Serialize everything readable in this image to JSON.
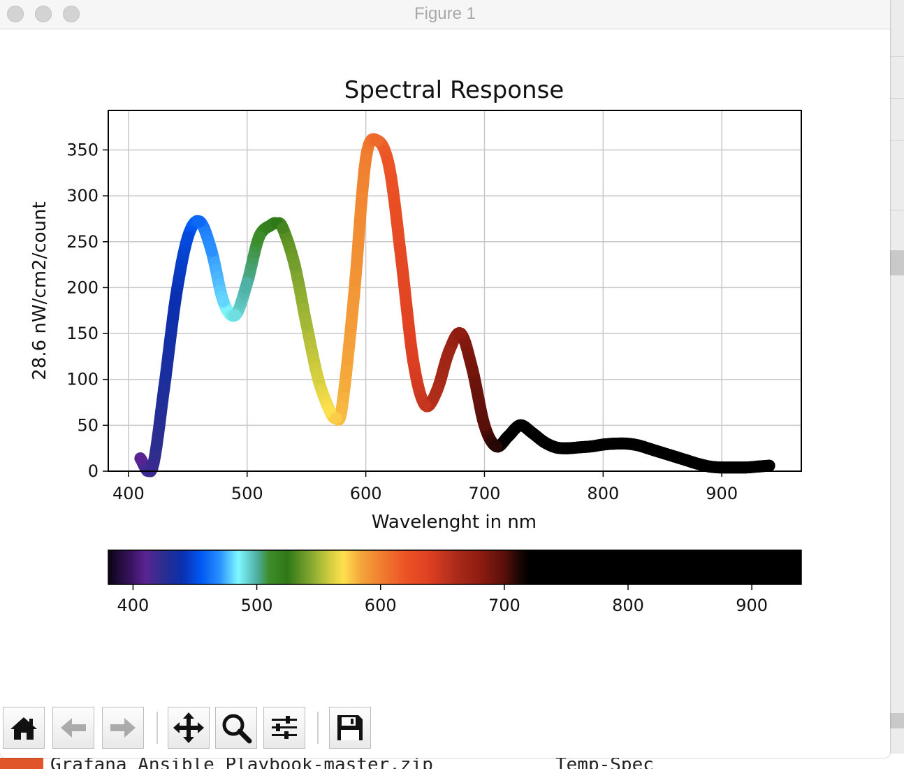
{
  "window": {
    "title": "Figure 1"
  },
  "chart_data": {
    "type": "line",
    "title": "Spectral Response",
    "xlabel": "Wavelenght in nm",
    "ylabel": "28.6 nW/cm2/count",
    "xlim": [
      383,
      967
    ],
    "ylim": [
      0,
      393
    ],
    "xticks": [
      "400",
      "500",
      "600",
      "700",
      "800",
      "900"
    ],
    "yticks": [
      "0",
      "50",
      "100",
      "150",
      "200",
      "250",
      "300",
      "350"
    ],
    "grid": true,
    "x": [
      410,
      420,
      430,
      440,
      450,
      460,
      470,
      480,
      490,
      500,
      510,
      520,
      525,
      530,
      540,
      550,
      560,
      570,
      575,
      580,
      590,
      600,
      610,
      620,
      630,
      640,
      650,
      660,
      670,
      680,
      690,
      700,
      710,
      720,
      730,
      740,
      750,
      760,
      770,
      780,
      790,
      800,
      810,
      820,
      830,
      840,
      850,
      860,
      870,
      880,
      890,
      900,
      910,
      920,
      930,
      940
    ],
    "y": [
      14,
      3,
      90,
      190,
      255,
      272,
      240,
      185,
      170,
      205,
      255,
      268,
      270,
      265,
      225,
      160,
      100,
      65,
      58,
      70,
      190,
      340,
      360,
      330,
      230,
      120,
      72,
      88,
      130,
      150,
      110,
      50,
      27,
      38,
      50,
      42,
      32,
      26,
      25,
      26,
      27,
      29,
      30,
      30,
      28,
      24,
      20,
      16,
      12,
      8,
      5,
      4,
      4,
      4,
      5,
      6
    ],
    "colorbar": {
      "ticks": [
        "400",
        "500",
        "600",
        "700",
        "800",
        "900"
      ],
      "range": [
        380,
        940
      ],
      "stops": [
        {
          "nm": 380,
          "color": "#0b0417"
        },
        {
          "nm": 400,
          "color": "#3d1566"
        },
        {
          "nm": 410,
          "color": "#5a2392"
        },
        {
          "nm": 425,
          "color": "#2a2e8f"
        },
        {
          "nm": 440,
          "color": "#0a2fb0"
        },
        {
          "nm": 455,
          "color": "#0058f2"
        },
        {
          "nm": 470,
          "color": "#2a8fff"
        },
        {
          "nm": 485,
          "color": "#7ff8ff"
        },
        {
          "nm": 500,
          "color": "#4fb0a4"
        },
        {
          "nm": 510,
          "color": "#3d8c2a"
        },
        {
          "nm": 525,
          "color": "#2f7817"
        },
        {
          "nm": 545,
          "color": "#8aab31"
        },
        {
          "nm": 560,
          "color": "#d6cf3f"
        },
        {
          "nm": 570,
          "color": "#fde04d"
        },
        {
          "nm": 585,
          "color": "#f4a33a"
        },
        {
          "nm": 600,
          "color": "#f07f30"
        },
        {
          "nm": 620,
          "color": "#ec5325"
        },
        {
          "nm": 640,
          "color": "#de3f22"
        },
        {
          "nm": 660,
          "color": "#ad2c1a"
        },
        {
          "nm": 680,
          "color": "#8f1c11"
        },
        {
          "nm": 700,
          "color": "#5a100a"
        },
        {
          "nm": 712,
          "color": "#1a0503"
        },
        {
          "nm": 720,
          "color": "#000000"
        },
        {
          "nm": 940,
          "color": "#000000"
        }
      ]
    }
  },
  "toolbar": {
    "home": "home-icon",
    "back": "arrow-left-icon",
    "forward": "arrow-right-icon",
    "pan": "move-arrows-icon",
    "zoom": "magnifier-icon",
    "configure": "sliders-icon",
    "save": "floppy-disk-icon"
  },
  "background": {
    "file_left": "Grafana Ansible Playbook-master.zip",
    "file_right": "Temp-Spec"
  }
}
